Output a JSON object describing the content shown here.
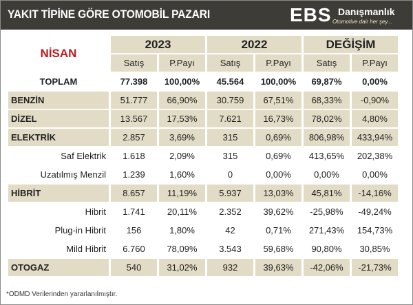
{
  "header": {
    "title": "YAKIT TİPİNE GÖRE OTOMOBİL PAZARI",
    "logo_ebs": "EBS",
    "logo_brand": "Danışmanlık",
    "logo_slogan": "Otomotive dair her şey..."
  },
  "table": {
    "month": "NİSAN",
    "groups": [
      "2023",
      "2022",
      "DEĞİŞİM"
    ],
    "subheaders": [
      "Satış",
      "P.Payı",
      "Satış",
      "P.Payı",
      "Satış",
      "P.Payı"
    ],
    "total": {
      "label": "TOPLAM",
      "values": [
        "77.398",
        "100,00%",
        "45.564",
        "100,00%",
        "69,87%",
        "0,00%"
      ]
    },
    "rows": [
      {
        "label": "BENZİN",
        "type": "main",
        "values": [
          "51.777",
          "66,90%",
          "30.759",
          "67,51%",
          "68,33%",
          "-0,90%"
        ]
      },
      {
        "label": "DİZEL",
        "type": "main",
        "values": [
          "13.567",
          "17,53%",
          "7.621",
          "16,73%",
          "78,02%",
          "4,80%"
        ]
      },
      {
        "label": "ELEKTRİK",
        "type": "main",
        "values": [
          "2.857",
          "3,69%",
          "315",
          "0,69%",
          "806,98%",
          "433,94%"
        ]
      },
      {
        "label": "Saf Elektrik",
        "type": "sub",
        "values": [
          "1.618",
          "2,09%",
          "315",
          "0,69%",
          "413,65%",
          "202,38%"
        ]
      },
      {
        "label": "Uzatılmış Menzil",
        "type": "sub",
        "values": [
          "1.239",
          "1,60%",
          "0",
          "0,00%",
          "0,00%",
          "0,00%"
        ]
      },
      {
        "label": "HİBRİT",
        "type": "main",
        "values": [
          "8.657",
          "11,19%",
          "5.937",
          "13,03%",
          "45,81%",
          "-14,16%"
        ]
      },
      {
        "label": "Hibrit",
        "type": "sub",
        "values": [
          "1.741",
          "20,11%",
          "2.352",
          "39,62%",
          "-25,98%",
          "-49,24%"
        ]
      },
      {
        "label": "Plug-in Hibrit",
        "type": "sub",
        "values": [
          "156",
          "1,80%",
          "42",
          "0,71%",
          "271,43%",
          "154,73%"
        ]
      },
      {
        "label": "Mild Hibrit",
        "type": "sub",
        "values": [
          "6.760",
          "78,09%",
          "3.543",
          "59,68%",
          "90,80%",
          "30,85%"
        ]
      },
      {
        "label": "OTOGAZ",
        "type": "main",
        "values": [
          "540",
          "31,02%",
          "932",
          "39,63%",
          "-42,06%",
          "-21,73%"
        ]
      }
    ]
  },
  "footnote": "*ODMD Verilerinden yararlanılmıştır."
}
